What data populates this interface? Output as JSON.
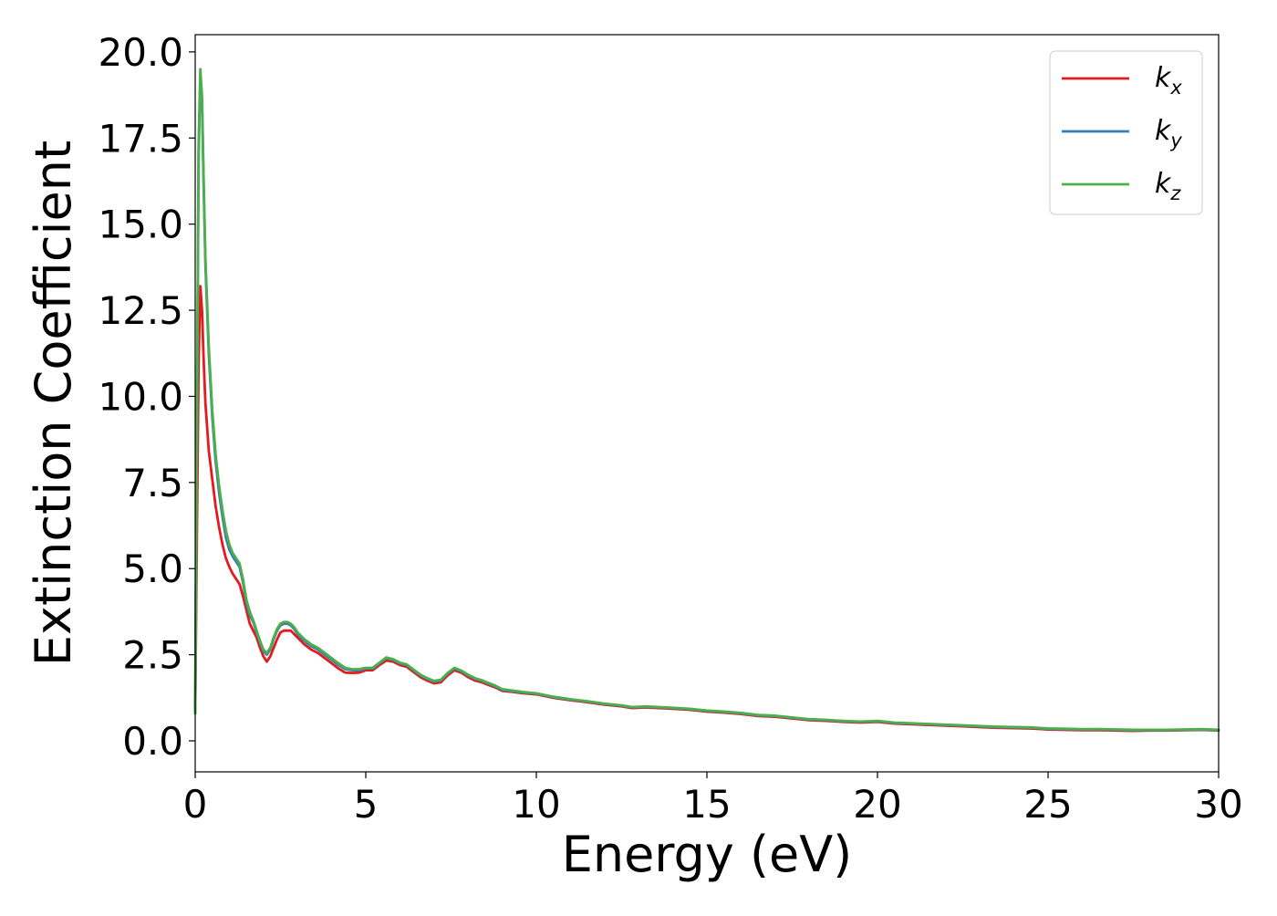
{
  "chart_data": {
    "type": "line",
    "title": "",
    "xlabel": "Energy (eV)",
    "ylabel": "Extinction Coefficient",
    "xlim": [
      0,
      30
    ],
    "ylim": [
      -0.9,
      20.5
    ],
    "x_ticks": [
      0,
      5,
      10,
      15,
      20,
      25,
      30
    ],
    "x_tick_labels": [
      "0",
      "5",
      "10",
      "15",
      "20",
      "25",
      "30"
    ],
    "y_ticks": [
      0.0,
      2.5,
      5.0,
      7.5,
      10.0,
      12.5,
      15.0,
      17.5,
      20.0
    ],
    "y_tick_labels": [
      "0.0",
      "2.5",
      "5.0",
      "7.5",
      "10.0",
      "12.5",
      "15.0",
      "17.5",
      "20.0"
    ],
    "grid": false,
    "legend_position": "top-right",
    "x": [
      0.0,
      0.05,
      0.1,
      0.15,
      0.2,
      0.25,
      0.3,
      0.4,
      0.5,
      0.6,
      0.7,
      0.8,
      0.9,
      1.0,
      1.1,
      1.2,
      1.3,
      1.4,
      1.5,
      1.6,
      1.7,
      1.8,
      1.9,
      2.0,
      2.1,
      2.2,
      2.3,
      2.4,
      2.5,
      2.6,
      2.7,
      2.8,
      2.9,
      3.0,
      3.2,
      3.4,
      3.6,
      3.8,
      4.0,
      4.2,
      4.4,
      4.6,
      4.8,
      5.0,
      5.2,
      5.4,
      5.6,
      5.8,
      6.0,
      6.2,
      6.4,
      6.6,
      6.8,
      7.0,
      7.2,
      7.4,
      7.6,
      7.8,
      8.0,
      8.2,
      8.4,
      8.6,
      8.8,
      9.0,
      9.3,
      9.6,
      10.0,
      10.5,
      11.0,
      11.5,
      12.0,
      12.5,
      12.8,
      13.2,
      13.6,
      14.0,
      14.5,
      15.0,
      15.5,
      16.0,
      16.5,
      17.0,
      17.5,
      18.0,
      18.5,
      19.0,
      19.5,
      20.0,
      20.5,
      21.0,
      21.5,
      22.0,
      22.5,
      23.0,
      23.5,
      24.0,
      24.5,
      25.0,
      25.5,
      26.0,
      26.5,
      27.0,
      27.5,
      28.0,
      28.5,
      29.0,
      29.5,
      30.0
    ],
    "series": [
      {
        "name": "k_x",
        "label_main": "k",
        "label_sub": "x",
        "color": "#e41a1c",
        "values": [
          0.8,
          6.0,
          11.0,
          13.2,
          12.5,
          11.0,
          9.8,
          8.4,
          7.6,
          6.8,
          6.2,
          5.7,
          5.3,
          5.05,
          4.85,
          4.7,
          4.55,
          4.2,
          3.8,
          3.4,
          3.2,
          3.0,
          2.7,
          2.45,
          2.3,
          2.45,
          2.7,
          2.95,
          3.15,
          3.2,
          3.2,
          3.2,
          3.1,
          3.0,
          2.8,
          2.65,
          2.55,
          2.4,
          2.25,
          2.1,
          1.98,
          1.97,
          1.98,
          2.05,
          2.05,
          2.2,
          2.33,
          2.3,
          2.2,
          2.15,
          2.0,
          1.85,
          1.75,
          1.67,
          1.7,
          1.9,
          2.05,
          1.98,
          1.85,
          1.75,
          1.7,
          1.62,
          1.55,
          1.45,
          1.42,
          1.38,
          1.35,
          1.25,
          1.18,
          1.12,
          1.05,
          1.0,
          0.95,
          0.97,
          0.95,
          0.93,
          0.9,
          0.85,
          0.82,
          0.78,
          0.72,
          0.7,
          0.65,
          0.6,
          0.58,
          0.55,
          0.53,
          0.55,
          0.5,
          0.48,
          0.46,
          0.44,
          0.42,
          0.4,
          0.38,
          0.37,
          0.36,
          0.33,
          0.32,
          0.31,
          0.31,
          0.3,
          0.29,
          0.3,
          0.3,
          0.31,
          0.32,
          0.3
        ]
      },
      {
        "name": "k_y",
        "label_main": "k",
        "label_sub": "y",
        "color": "#377eb8",
        "values": [
          0.8,
          9.0,
          17.0,
          19.3,
          18.5,
          16.0,
          13.8,
          11.2,
          9.4,
          8.1,
          7.2,
          6.5,
          5.9,
          5.55,
          5.35,
          5.2,
          5.05,
          4.6,
          4.0,
          3.65,
          3.45,
          3.15,
          2.85,
          2.6,
          2.5,
          2.65,
          2.95,
          3.2,
          3.35,
          3.4,
          3.4,
          3.35,
          3.25,
          3.1,
          2.9,
          2.75,
          2.65,
          2.5,
          2.35,
          2.2,
          2.08,
          2.05,
          2.05,
          2.1,
          2.1,
          2.25,
          2.4,
          2.35,
          2.25,
          2.2,
          2.05,
          1.9,
          1.8,
          1.72,
          1.75,
          1.95,
          2.1,
          2.02,
          1.9,
          1.8,
          1.74,
          1.66,
          1.58,
          1.48,
          1.44,
          1.4,
          1.37,
          1.27,
          1.2,
          1.14,
          1.07,
          1.02,
          0.97,
          0.99,
          0.97,
          0.95,
          0.92,
          0.87,
          0.84,
          0.8,
          0.74,
          0.72,
          0.67,
          0.62,
          0.6,
          0.57,
          0.55,
          0.57,
          0.52,
          0.5,
          0.48,
          0.46,
          0.44,
          0.42,
          0.4,
          0.39,
          0.38,
          0.35,
          0.34,
          0.33,
          0.33,
          0.32,
          0.31,
          0.31,
          0.31,
          0.32,
          0.33,
          0.31
        ]
      },
      {
        "name": "k_z",
        "label_main": "k",
        "label_sub": "z",
        "color": "#4daf4a",
        "values": [
          0.8,
          9.2,
          17.3,
          19.5,
          18.7,
          16.2,
          14.0,
          11.4,
          9.6,
          8.3,
          7.4,
          6.7,
          6.1,
          5.7,
          5.45,
          5.3,
          5.15,
          4.7,
          4.1,
          3.75,
          3.5,
          3.2,
          2.9,
          2.65,
          2.55,
          2.7,
          3.0,
          3.25,
          3.4,
          3.45,
          3.45,
          3.4,
          3.3,
          3.15,
          2.95,
          2.8,
          2.7,
          2.55,
          2.4,
          2.25,
          2.12,
          2.08,
          2.08,
          2.12,
          2.12,
          2.27,
          2.42,
          2.37,
          2.27,
          2.22,
          2.07,
          1.92,
          1.82,
          1.74,
          1.77,
          1.97,
          2.12,
          2.04,
          1.92,
          1.82,
          1.76,
          1.68,
          1.6,
          1.5,
          1.46,
          1.42,
          1.38,
          1.28,
          1.21,
          1.15,
          1.08,
          1.03,
          0.98,
          1.0,
          0.98,
          0.96,
          0.93,
          0.88,
          0.85,
          0.81,
          0.75,
          0.73,
          0.68,
          0.63,
          0.61,
          0.58,
          0.56,
          0.58,
          0.53,
          0.51,
          0.49,
          0.47,
          0.45,
          0.43,
          0.41,
          0.4,
          0.39,
          0.36,
          0.35,
          0.34,
          0.34,
          0.33,
          0.32,
          0.32,
          0.32,
          0.33,
          0.34,
          0.32
        ]
      }
    ]
  }
}
